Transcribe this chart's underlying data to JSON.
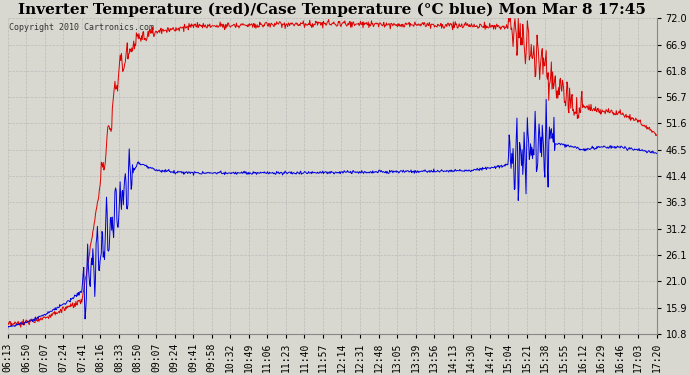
{
  "title": "Inverter Temperature (red)/Case Temperature (°C blue) Mon Mar 8 17:45",
  "copyright_text": "Copyright 2010 Cartronics.com",
  "y_min": 10.8,
  "y_max": 72.0,
  "y_ticks": [
    10.8,
    15.9,
    21.0,
    26.1,
    31.2,
    36.3,
    41.4,
    46.5,
    51.6,
    56.7,
    61.8,
    66.9,
    72.0
  ],
  "x_labels": [
    "06:13",
    "06:50",
    "07:07",
    "07:24",
    "07:41",
    "08:16",
    "08:33",
    "08:50",
    "09:07",
    "09:24",
    "09:41",
    "09:58",
    "10:32",
    "10:49",
    "11:06",
    "11:23",
    "11:40",
    "11:57",
    "12:14",
    "12:31",
    "12:48",
    "13:05",
    "13:39",
    "13:56",
    "14:13",
    "14:30",
    "14:47",
    "15:04",
    "15:21",
    "15:38",
    "15:55",
    "16:12",
    "16:29",
    "16:46",
    "17:03",
    "17:20"
  ],
  "bg_color": "#d8d8d0",
  "plot_bg_color": "#d8d8d0",
  "grid_color": "#bbbbbb",
  "line_red_color": "#dd0000",
  "line_blue_color": "#0000dd",
  "title_fontsize": 11,
  "tick_fontsize": 7,
  "copyright_fontsize": 6
}
